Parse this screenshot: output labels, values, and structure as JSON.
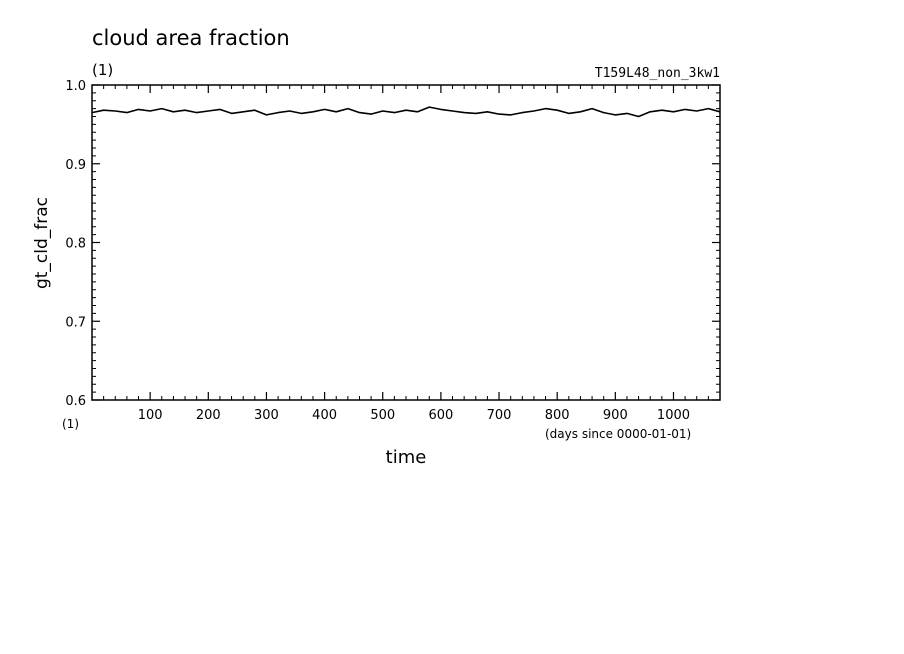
{
  "chart_data": {
    "type": "line",
    "title": "cloud area fraction",
    "title_unit": "(1)",
    "run_label": "T159L48_non_3kw1",
    "ylabel": "gt_cld_frac",
    "y_unit": "(1)",
    "xlabel": "time",
    "x_unit": "(days since 0000-01-01)",
    "xlim": [
      0,
      1080
    ],
    "ylim": [
      0.6,
      1.0
    ],
    "x_ticks": [
      100,
      200,
      300,
      400,
      500,
      600,
      700,
      800,
      900,
      1000
    ],
    "x_tick_labels": [
      "100",
      "200",
      "300",
      "400",
      "500",
      "600",
      "700",
      "800",
      "900",
      "1000"
    ],
    "y_ticks": [
      0.6,
      0.7,
      0.8,
      0.9,
      1.0
    ],
    "y_tick_labels": [
      "0.6",
      "0.7",
      "0.8",
      "0.9",
      "1.0"
    ],
    "grid": false,
    "line_color": "#000000",
    "series": [
      {
        "x": [
          0,
          20,
          40,
          60,
          80,
          100,
          120,
          140,
          160,
          180,
          200,
          220,
          240,
          260,
          280,
          300,
          320,
          340,
          360,
          380,
          400,
          420,
          440,
          460,
          480,
          500,
          520,
          540,
          560,
          580,
          600,
          620,
          640,
          660,
          680,
          700,
          720,
          740,
          760,
          780,
          800,
          820,
          840,
          860,
          880,
          900,
          920,
          940,
          960,
          980,
          1000,
          1020,
          1040,
          1060,
          1080
        ],
        "y": [
          0.965,
          0.968,
          0.967,
          0.965,
          0.969,
          0.967,
          0.97,
          0.966,
          0.968,
          0.965,
          0.967,
          0.969,
          0.964,
          0.966,
          0.968,
          0.962,
          0.965,
          0.967,
          0.964,
          0.966,
          0.969,
          0.966,
          0.97,
          0.965,
          0.963,
          0.967,
          0.965,
          0.968,
          0.966,
          0.972,
          0.969,
          0.967,
          0.965,
          0.964,
          0.966,
          0.963,
          0.962,
          0.965,
          0.967,
          0.97,
          0.968,
          0.964,
          0.966,
          0.97,
          0.965,
          0.962,
          0.964,
          0.96,
          0.966,
          0.968,
          0.966,
          0.969,
          0.967,
          0.97,
          0.966
        ]
      }
    ]
  }
}
